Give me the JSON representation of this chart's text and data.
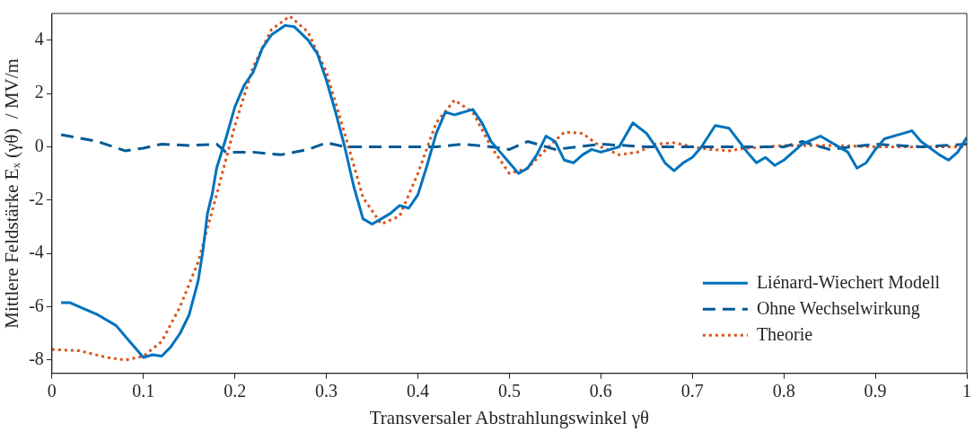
{
  "chart_data": {
    "type": "line",
    "xlabel": "Transversaler Abstrahlungswinkel γθ",
    "ylabel": "Mittlere Feldstärke Eₓ (γθ)  / MV/m",
    "xlim": [
      0,
      1
    ],
    "xticks": [
      0,
      0.1,
      0.2,
      0.3,
      0.4,
      0.5,
      0.6,
      0.7,
      0.8,
      0.9,
      1
    ],
    "ylim": [
      -8.5,
      5
    ],
    "yticks": [
      -8,
      -6,
      -4,
      -2,
      0,
      2,
      4
    ],
    "grid": false,
    "legend": "bottom right",
    "series": [
      {
        "name": "Liénard-Wiechert Modell",
        "color": "#0072bd",
        "line_style": "solid",
        "x": [
          0.01,
          0.02,
          0.03,
          0.05,
          0.07,
          0.085,
          0.1,
          0.11,
          0.12,
          0.13,
          0.14,
          0.15,
          0.16,
          0.165,
          0.17,
          0.175,
          0.18,
          0.19,
          0.2,
          0.21,
          0.22,
          0.23,
          0.24,
          0.255,
          0.265,
          0.28,
          0.29,
          0.3,
          0.31,
          0.32,
          0.33,
          0.34,
          0.35,
          0.36,
          0.37,
          0.38,
          0.39,
          0.4,
          0.41,
          0.42,
          0.43,
          0.44,
          0.45,
          0.46,
          0.47,
          0.48,
          0.49,
          0.5,
          0.51,
          0.52,
          0.53,
          0.54,
          0.55,
          0.56,
          0.57,
          0.58,
          0.59,
          0.6,
          0.62,
          0.635,
          0.65,
          0.66,
          0.67,
          0.68,
          0.69,
          0.7,
          0.71,
          0.725,
          0.74,
          0.76,
          0.77,
          0.78,
          0.79,
          0.8,
          0.81,
          0.82,
          0.84,
          0.85,
          0.87,
          0.88,
          0.89,
          0.9,
          0.91,
          0.93,
          0.94,
          0.95,
          0.97,
          0.98,
          0.99,
          1.0
        ],
        "values": [
          -5.85,
          -5.85,
          -6.0,
          -6.3,
          -6.7,
          -7.3,
          -7.9,
          -7.8,
          -7.85,
          -7.5,
          -7.0,
          -6.3,
          -5.0,
          -3.9,
          -2.5,
          -1.8,
          -0.8,
          0.3,
          1.5,
          2.3,
          2.8,
          3.7,
          4.2,
          4.55,
          4.5,
          4.0,
          3.5,
          2.5,
          1.3,
          0.0,
          -1.5,
          -2.7,
          -2.9,
          -2.7,
          -2.5,
          -2.2,
          -2.3,
          -1.8,
          -0.7,
          0.5,
          1.3,
          1.2,
          1.3,
          1.4,
          0.9,
          0.2,
          -0.2,
          -0.6,
          -1.0,
          -0.8,
          -0.3,
          0.4,
          0.2,
          -0.5,
          -0.6,
          -0.3,
          -0.1,
          -0.2,
          0.0,
          0.9,
          0.5,
          0.0,
          -0.6,
          -0.9,
          -0.6,
          -0.4,
          0.0,
          0.8,
          0.7,
          -0.2,
          -0.6,
          -0.4,
          -0.7,
          -0.5,
          -0.2,
          0.1,
          0.4,
          0.2,
          -0.2,
          -0.8,
          -0.6,
          -0.1,
          0.3,
          0.5,
          0.6,
          0.2,
          -0.3,
          -0.5,
          -0.2,
          0.35
        ]
      },
      {
        "name": "Ohne Wechselwirkung",
        "color": "#005a96",
        "line_style": "dashed",
        "x": [
          0.01,
          0.05,
          0.08,
          0.1,
          0.12,
          0.15,
          0.18,
          0.19,
          0.22,
          0.25,
          0.28,
          0.3,
          0.32,
          0.35,
          0.38,
          0.42,
          0.45,
          0.48,
          0.5,
          0.52,
          0.55,
          0.6,
          0.65,
          0.7,
          0.75,
          0.8,
          0.82,
          0.85,
          0.9,
          0.95,
          1.0
        ],
        "values": [
          0.45,
          0.2,
          -0.15,
          -0.05,
          0.1,
          0.05,
          0.1,
          -0.2,
          -0.2,
          -0.3,
          -0.1,
          0.15,
          0.0,
          0.0,
          0.0,
          0.0,
          0.1,
          0.0,
          -0.1,
          0.2,
          -0.1,
          0.1,
          0.0,
          0.0,
          0.0,
          0.0,
          0.2,
          -0.1,
          0.1,
          0.0,
          0.1
        ]
      },
      {
        "name": "Theorie",
        "color": "#d95319",
        "line_style": "dotted",
        "x": [
          0.0,
          0.03,
          0.06,
          0.08,
          0.1,
          0.12,
          0.14,
          0.16,
          0.18,
          0.2,
          0.22,
          0.24,
          0.26,
          0.28,
          0.3,
          0.32,
          0.34,
          0.36,
          0.38,
          0.4,
          0.42,
          0.44,
          0.46,
          0.48,
          0.5,
          0.52,
          0.54,
          0.56,
          0.58,
          0.6,
          0.62,
          0.64,
          0.66,
          0.68,
          0.7,
          0.72,
          0.74,
          0.76,
          0.8,
          0.85,
          0.9,
          1.0
        ],
        "values": [
          -7.6,
          -7.65,
          -7.9,
          -8.0,
          -7.85,
          -7.3,
          -6.0,
          -4.3,
          -1.8,
          0.8,
          3.0,
          4.4,
          4.9,
          4.3,
          2.8,
          0.5,
          -1.9,
          -2.9,
          -2.6,
          -1.0,
          0.9,
          1.75,
          1.3,
          0.0,
          -1.0,
          -0.8,
          -0.1,
          0.55,
          0.5,
          0.0,
          -0.3,
          -0.2,
          0.1,
          0.15,
          0.0,
          -0.1,
          -0.15,
          -0.05,
          0.05,
          0.05,
          0.0,
          0.0
        ]
      }
    ]
  }
}
